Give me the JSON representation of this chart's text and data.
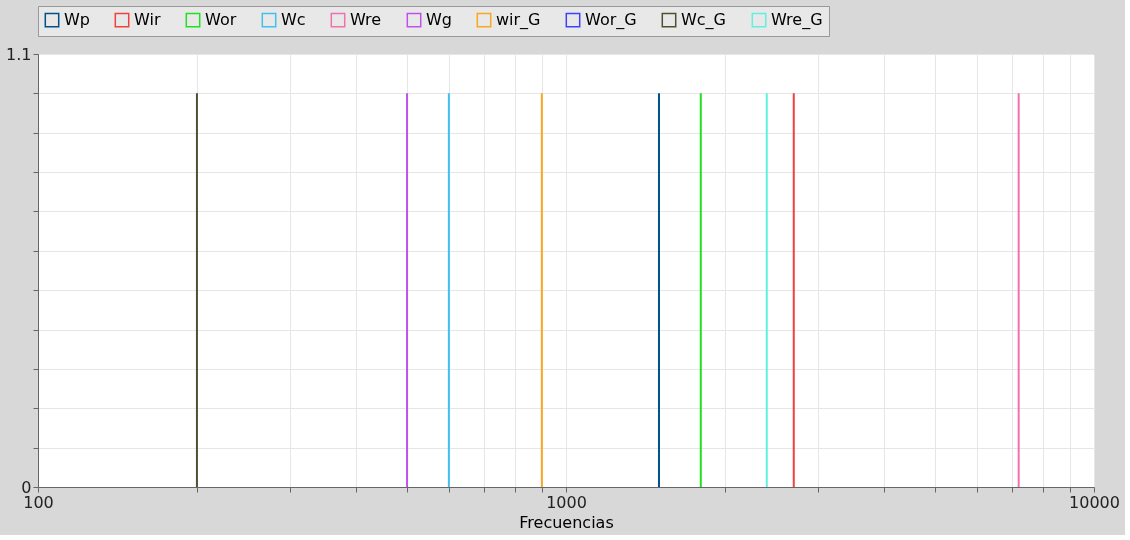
{
  "chart_data": {
    "type": "line",
    "xlabel": "Frecuencias",
    "log": "x",
    "grid": true,
    "legend": "top",
    "marker": "none",
    "line_style": "solid",
    "xlim": [
      100,
      10000
    ],
    "ylim": [
      0,
      1.1
    ],
    "xticks": [
      100,
      {
        "value": 200,
        "label": null
      },
      {
        "value": 300,
        "label": null
      },
      {
        "value": 400,
        "label": null
      },
      {
        "value": 500,
        "label": null
      },
      {
        "value": 600,
        "label": null
      },
      {
        "value": 700,
        "label": null
      },
      {
        "value": 800,
        "label": null
      },
      {
        "value": 900,
        "label": null
      },
      1000,
      {
        "value": 2000,
        "label": null
      },
      {
        "value": 3000,
        "label": null
      },
      {
        "value": 4000,
        "label": null
      },
      {
        "value": 5000,
        "label": null
      },
      {
        "value": 6000,
        "label": null
      },
      {
        "value": 7000,
        "label": null
      },
      {
        "value": 8000,
        "label": null
      },
      {
        "value": 9000,
        "label": null
      },
      10000
    ],
    "yticks": [
      0,
      {
        "value": 0.1,
        "label": null
      },
      {
        "value": 0.2,
        "label": null
      },
      {
        "value": 0.3,
        "label": null
      },
      {
        "value": 0.4,
        "label": null
      },
      {
        "value": 0.5,
        "label": null
      },
      {
        "value": 0.6,
        "label": null
      },
      {
        "value": 0.7,
        "label": null
      },
      {
        "value": 0.8,
        "label": null
      },
      {
        "value": 0.9,
        "label": null
      },
      {
        "value": 1.0,
        "label": null
      },
      1.1
    ],
    "series": [
      {
        "name": "Wp",
        "color": "#00508c",
        "x": [
          1500,
          1500
        ],
        "values": [
          0,
          1
        ]
      },
      {
        "name": "Wir",
        "color": "#f04040",
        "x": [
          2700,
          2700
        ],
        "values": [
          0,
          1
        ]
      },
      {
        "name": "Wor",
        "color": "#20e020",
        "x": [
          1800,
          1800
        ],
        "values": [
          0,
          1
        ]
      },
      {
        "name": "Wc",
        "color": "#40c0f0",
        "x": [
          600,
          600
        ],
        "values": [
          0,
          1
        ]
      },
      {
        "name": "Wre",
        "color": "#f070b0",
        "x": [
          7200,
          7200
        ],
        "values": [
          0,
          1
        ]
      },
      {
        "name": "Wg",
        "color": "#c050f0",
        "x": [
          500,
          500
        ],
        "values": [
          0,
          1
        ]
      },
      {
        "name": "wir_G",
        "color": "#f8a820",
        "x": [
          900,
          900
        ],
        "values": [
          0,
          1
        ]
      },
      {
        "name": "Wor_G",
        "color": "#4040ff"
      },
      {
        "name": "Wc_G",
        "color": "#505030",
        "x": [
          200,
          200
        ],
        "values": [
          0,
          1
        ]
      },
      {
        "name": "Wre_G",
        "color": "#60f0e0",
        "x": [
          2400,
          2400
        ],
        "values": [
          0,
          1
        ]
      }
    ]
  }
}
